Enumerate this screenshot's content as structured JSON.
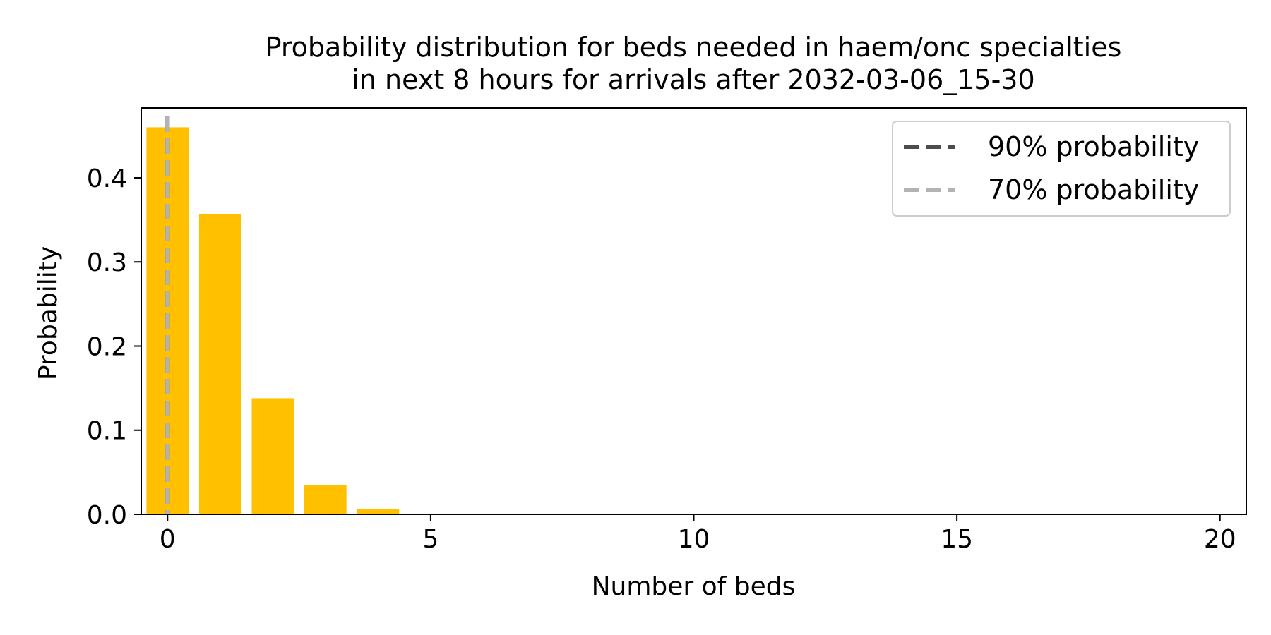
{
  "chart_data": {
    "type": "bar",
    "title_lines": [
      "Probability distribution for beds needed in haem/onc specialties",
      "in next 8 hours for arrivals after 2032-03-06_15-30"
    ],
    "xlabel": "Number of beds",
    "ylabel": "Probability",
    "x": [
      0,
      1,
      2,
      3,
      4,
      5,
      6,
      7,
      8,
      9,
      10,
      11,
      12,
      13,
      14,
      15,
      16,
      17,
      18,
      19,
      20
    ],
    "values": [
      0.46,
      0.357,
      0.138,
      0.035,
      0.006,
      0.0008,
      0.0001,
      0,
      0,
      0,
      0,
      0,
      0,
      0,
      0,
      0,
      0,
      0,
      0,
      0,
      0
    ],
    "bar_color": "#FFC000",
    "xlim": [
      -0.5,
      20.5
    ],
    "ylim": [
      0,
      0.483
    ],
    "xticks": [
      0,
      5,
      10,
      15,
      20
    ],
    "xtick_labels": [
      "0",
      "5",
      "10",
      "15",
      "20"
    ],
    "yticks": [
      0.0,
      0.1,
      0.2,
      0.3,
      0.4
    ],
    "ytick_labels": [
      "0.0",
      "0.1",
      "0.2",
      "0.3",
      "0.4"
    ],
    "reference_lines": [
      {
        "label": "90% probability",
        "x": 0,
        "color": "#4d4d4d"
      },
      {
        "label": "70% probability",
        "x": 0,
        "color": "#b3b3b3"
      }
    ],
    "legend_position": "top-right",
    "grid": false
  }
}
